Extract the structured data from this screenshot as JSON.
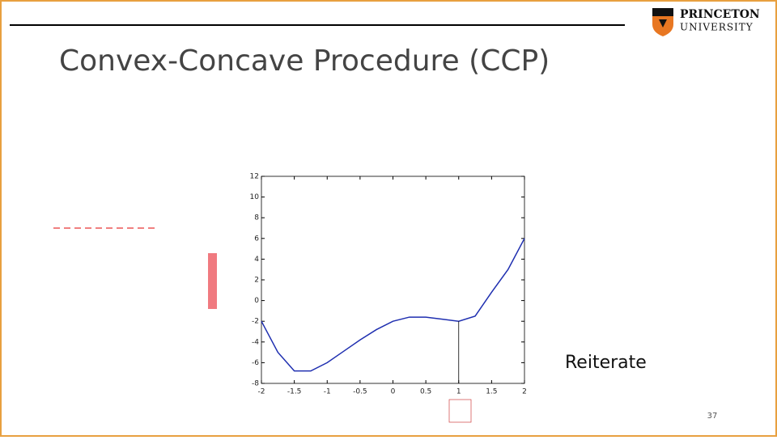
{
  "header": {
    "title": "Convex-Concave Procedure (CCP)",
    "logo_top": "PRINCETON",
    "logo_bottom": "UNIVERSITY"
  },
  "body_text": "Reiterate",
  "page_number": "37",
  "chart_data": {
    "type": "line",
    "x": [
      -2,
      -1.75,
      -1.5,
      -1.25,
      -1,
      -0.75,
      -0.5,
      -0.25,
      0,
      0.25,
      0.5,
      0.75,
      1,
      1.25,
      1.5,
      1.75,
      2
    ],
    "values": [
      -2,
      -5,
      -6.8,
      -6.8,
      -6,
      -4.9,
      -3.8,
      -2.8,
      -2,
      -1.6,
      -1.6,
      -1.8,
      -2,
      -1.5,
      0.8,
      3,
      6
    ],
    "color": "#1f2fb0",
    "marker_x": 1,
    "xlim": [
      -2,
      2
    ],
    "xticks": [
      -2,
      -1.5,
      -1,
      -0.5,
      0,
      0.5,
      1,
      1.5,
      2
    ],
    "ylim": [
      -8,
      12
    ],
    "yticks": [
      -8,
      -6,
      -4,
      -2,
      0,
      2,
      4,
      6,
      8,
      10,
      12
    ]
  }
}
